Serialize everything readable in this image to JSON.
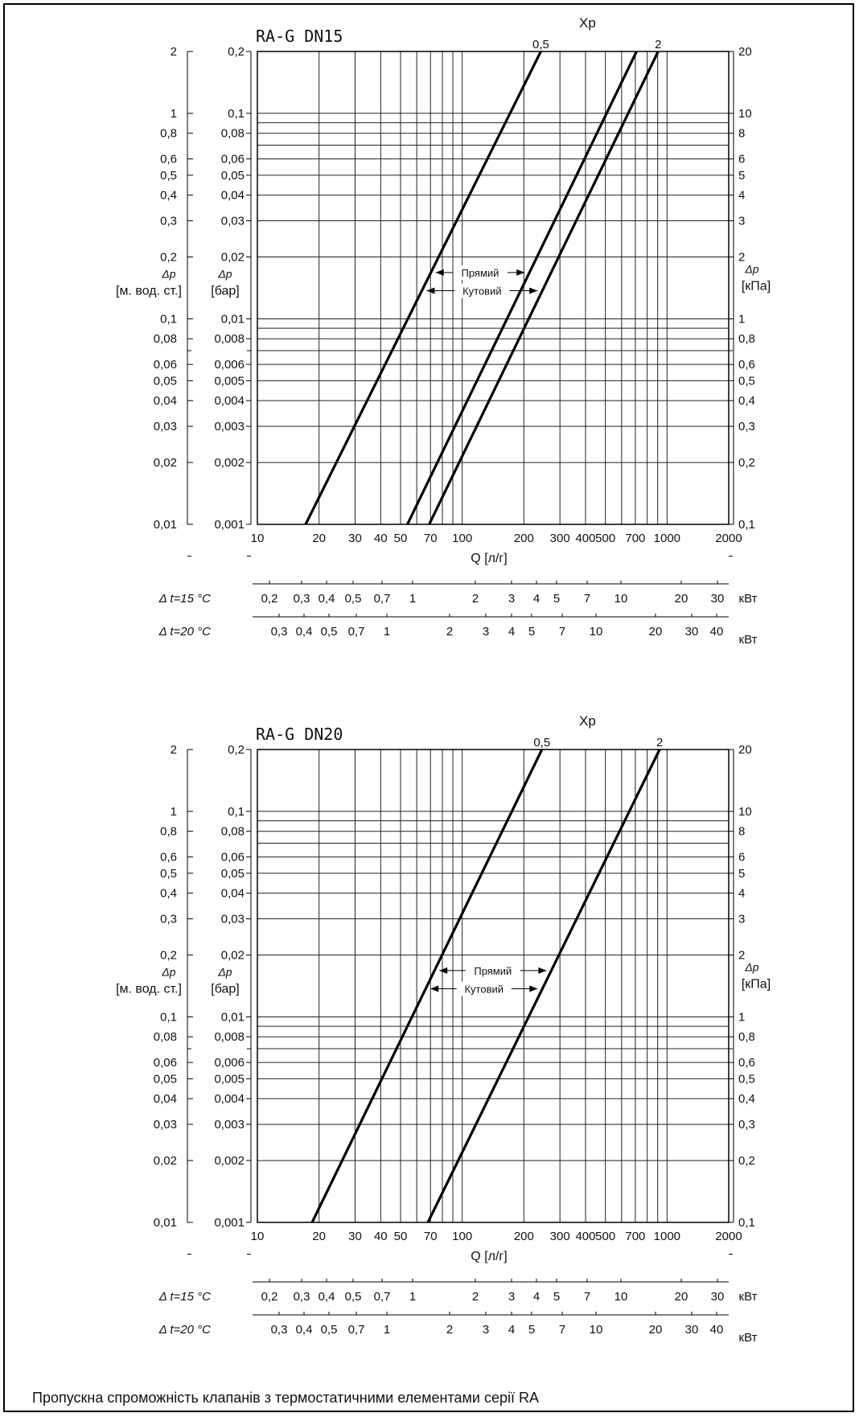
{
  "caption": "Пропускна спроможність клапанів з термостатичними елементами серії RA",
  "chart_data": [
    {
      "type": "line",
      "title": "RA-G DN15",
      "xscale": "log",
      "yscale": "log",
      "xlim": [
        10,
        2000
      ],
      "ylim_bar": [
        0.001,
        0.2
      ],
      "xlabel": "Q [л/г]",
      "x_ticks": [
        "10",
        "20",
        "30",
        "40",
        "50",
        "70",
        "100",
        "200",
        "300",
        "400",
        "500",
        "700",
        "1000",
        "2000"
      ],
      "y_left_outer": {
        "label_1": "Δp",
        "label_2": "[м. вод. ст.]",
        "ticks": [
          "2",
          "1",
          "0,8",
          "0,6",
          "0,5",
          "0,4",
          "0,3",
          "0,2",
          "0,1",
          "0,08",
          "0,06",
          "0,05",
          "0,04",
          "0,03",
          "0,02",
          "0,01"
        ]
      },
      "y_left_inner": {
        "label_1": "Δp",
        "label_2": "[бар]",
        "ticks": [
          "0,2",
          "0,1",
          "0,08",
          "0,06",
          "0,05",
          "0,04",
          "0,03",
          "0,02",
          "0,01",
          "0,008",
          "0,006",
          "0,005",
          "0,004",
          "0,003",
          "0,002",
          "0,001"
        ]
      },
      "y_right": {
        "label_1": "Δp",
        "label_2": "[кПа]",
        "ticks": [
          "20",
          "10",
          "8",
          "6",
          "5",
          "4",
          "3",
          "2",
          "1",
          "0,8",
          "0,6",
          "0,5",
          "0,4",
          "0,3",
          "0,2",
          "0,1"
        ]
      },
      "xp_label": "Xp",
      "series": [
        {
          "name": "0,5",
          "x": [
            17.2,
            242
          ],
          "y_bar": [
            0.001,
            0.2
          ]
        },
        {
          "name": "",
          "x": [
            54,
            710
          ],
          "y_bar": [
            0.001,
            0.2
          ]
        },
        {
          "name": "2",
          "x": [
            69,
            905
          ],
          "y_bar": [
            0.001,
            0.2
          ]
        }
      ],
      "annotations": {
        "straight": "Прямий",
        "angle": "Кутовий"
      },
      "kw_scales": [
        {
          "label": "Δ t=15 °C",
          "unit": "кВт",
          "ticks": [
            "0,2",
            "0,3",
            "0,4",
            "0,5",
            "0,7",
            "1",
            "2",
            "3",
            "4",
            "5",
            "7",
            "10",
            "20",
            "30"
          ]
        },
        {
          "label": "Δ t=20 °C",
          "unit": "кВт",
          "ticks": [
            "0,3",
            "0,4",
            "0,5",
            "0,7",
            "1",
            "2",
            "3",
            "4",
            "5",
            "7",
            "10",
            "20",
            "30",
            "40"
          ]
        }
      ]
    },
    {
      "type": "line",
      "title": "RA-G DN20",
      "xscale": "log",
      "yscale": "log",
      "xlim": [
        10,
        2000
      ],
      "ylim_bar": [
        0.001,
        0.2
      ],
      "xlabel": "Q [л/г]",
      "x_ticks": [
        "10",
        "20",
        "30",
        "40",
        "50",
        "70",
        "100",
        "200",
        "300",
        "400",
        "500",
        "700",
        "1000",
        "2000"
      ],
      "y_left_outer": {
        "label_1": "Δp",
        "label_2": "[м. вод. ст.]",
        "ticks": [
          "2",
          "1",
          "0,8",
          "0,6",
          "0,5",
          "0,4",
          "0,3",
          "0,2",
          "0,1",
          "0,08",
          "0,06",
          "0,05",
          "0,04",
          "0,03",
          "0,02",
          "0,01"
        ]
      },
      "y_left_inner": {
        "label_1": "Δp",
        "label_2": "[бар]",
        "ticks": [
          "0,2",
          "0,1",
          "0,08",
          "0,06",
          "0,05",
          "0,04",
          "0,03",
          "0,02",
          "0,01",
          "0,008",
          "0,006",
          "0,005",
          "0,004",
          "0,003",
          "0,002",
          "0,001"
        ]
      },
      "y_right": {
        "label_1": "Δp",
        "label_2": "[кПа]",
        "ticks": [
          "20",
          "10",
          "8",
          "6",
          "5",
          "4",
          "3",
          "2",
          "1",
          "0,8",
          "0,6",
          "0,5",
          "0,4",
          "0,3",
          "0,2",
          "0,1"
        ]
      },
      "xp_label": "Xp",
      "series": [
        {
          "name": "0,5",
          "x": [
            18.5,
            245
          ],
          "y_bar": [
            0.001,
            0.2
          ]
        },
        {
          "name": "2",
          "x": [
            68,
            920
          ],
          "y_bar": [
            0.001,
            0.2
          ]
        }
      ],
      "annotations": {
        "straight": "Прямий",
        "angle": "Кутовий"
      },
      "kw_scales": [
        {
          "label": "Δ t=15 °C",
          "unit": "кВт",
          "ticks": [
            "0,2",
            "0,3",
            "0,4",
            "0,5",
            "0,7",
            "1",
            "2",
            "3",
            "4",
            "5",
            "7",
            "10",
            "20",
            "30"
          ]
        },
        {
          "label": "Δ t=20 °C",
          "unit": "кВт",
          "ticks": [
            "0,3",
            "0,4",
            "0,5",
            "0,7",
            "1",
            "2",
            "3",
            "4",
            "5",
            "7",
            "10",
            "20",
            "30",
            "40"
          ]
        }
      ]
    }
  ]
}
